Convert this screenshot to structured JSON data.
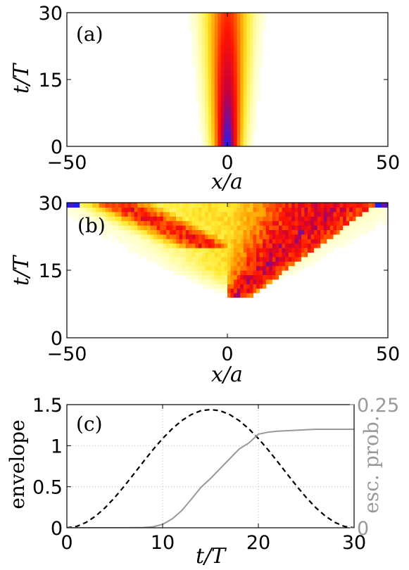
{
  "chart_data": [
    {
      "type": "heatmap",
      "panel_label": "(a)",
      "xlabel_var": "x",
      "xlabel_unit": "a",
      "ylabel_var": "t",
      "ylabel_unit": "T",
      "xlim": [
        -50,
        50
      ],
      "ylim": [
        0,
        30
      ],
      "xticks": [
        -50,
        0,
        50
      ],
      "xtick_labels": [
        "−50",
        "0",
        "50"
      ],
      "yticks": [
        0,
        15,
        30
      ],
      "ytick_labels": [
        "0",
        "15",
        "30"
      ],
      "colormap": [
        "#ffffff",
        "#ffff99",
        "#ffcc00",
        "#ff6600",
        "#ff0000",
        "#cc0033",
        "#0000ff"
      ],
      "description_params": {
        "center_x": 0,
        "initial_width": 3.2,
        "final_width": 5.0
      }
    },
    {
      "type": "heatmap",
      "panel_label": "(b)",
      "xlabel_var": "x",
      "xlabel_unit": "a",
      "ylabel_var": "t",
      "ylabel_unit": "T",
      "xlim": [
        -50,
        50
      ],
      "ylim": [
        0,
        30
      ],
      "xticks": [
        -50,
        0,
        50
      ],
      "xtick_labels": [
        "−50",
        "0",
        "50"
      ],
      "yticks": [
        0,
        15,
        30
      ],
      "ytick_labels": [
        "0",
        "15",
        "30"
      ]
    },
    {
      "type": "line",
      "panel_label": "(c)",
      "xlabel_var": "t",
      "xlabel_unit": "T",
      "ylabel": "envelope",
      "ylabel_right": "esc. prob.",
      "xlim": [
        0,
        30
      ],
      "ylim": [
        0,
        1.5
      ],
      "ylim_right": [
        0,
        0.25
      ],
      "xticks": [
        0,
        10,
        20,
        30
      ],
      "xtick_labels": [
        "0",
        "10",
        "20",
        "30"
      ],
      "yticks": [
        0,
        0.5,
        1,
        1.5
      ],
      "ytick_labels": [
        "0",
        "0.5",
        "1",
        "1.5"
      ],
      "yticks_right": [
        0,
        0.25
      ],
      "ytick_labels_right": [
        "0",
        "0.25"
      ],
      "grid": true,
      "series": [
        {
          "axis": "left",
          "style": "dashed",
          "color": "#000000",
          "x": [
            0,
            1,
            2,
            3,
            4,
            5,
            6,
            7,
            8,
            9,
            10,
            11,
            12,
            13,
            14,
            15,
            16,
            17,
            18,
            19,
            20,
            21,
            22,
            23,
            24,
            25,
            26,
            27,
            28,
            29,
            30
          ],
          "values": [
            0,
            0.016,
            0.065,
            0.142,
            0.245,
            0.369,
            0.508,
            0.656,
            0.806,
            0.952,
            1.087,
            1.206,
            1.305,
            1.379,
            1.426,
            1.44,
            1.426,
            1.379,
            1.305,
            1.206,
            1.087,
            0.952,
            0.806,
            0.656,
            0.508,
            0.369,
            0.245,
            0.142,
            0.065,
            0.016,
            0
          ]
        },
        {
          "axis": "right",
          "style": "solid",
          "color": "#999999",
          "x": [
            0,
            2,
            4,
            6,
            8,
            9,
            10,
            11,
            12,
            13,
            14,
            15,
            16,
            17,
            18,
            19,
            20,
            21,
            22,
            24,
            26,
            28,
            29,
            30
          ],
          "values": [
            0,
            0,
            0,
            0,
            0.0005,
            0.002,
            0.007,
            0.018,
            0.035,
            0.058,
            0.082,
            0.1,
            0.12,
            0.14,
            0.16,
            0.172,
            0.19,
            0.194,
            0.196,
            0.198,
            0.2,
            0.2,
            0.2,
            0.2
          ]
        }
      ]
    }
  ]
}
